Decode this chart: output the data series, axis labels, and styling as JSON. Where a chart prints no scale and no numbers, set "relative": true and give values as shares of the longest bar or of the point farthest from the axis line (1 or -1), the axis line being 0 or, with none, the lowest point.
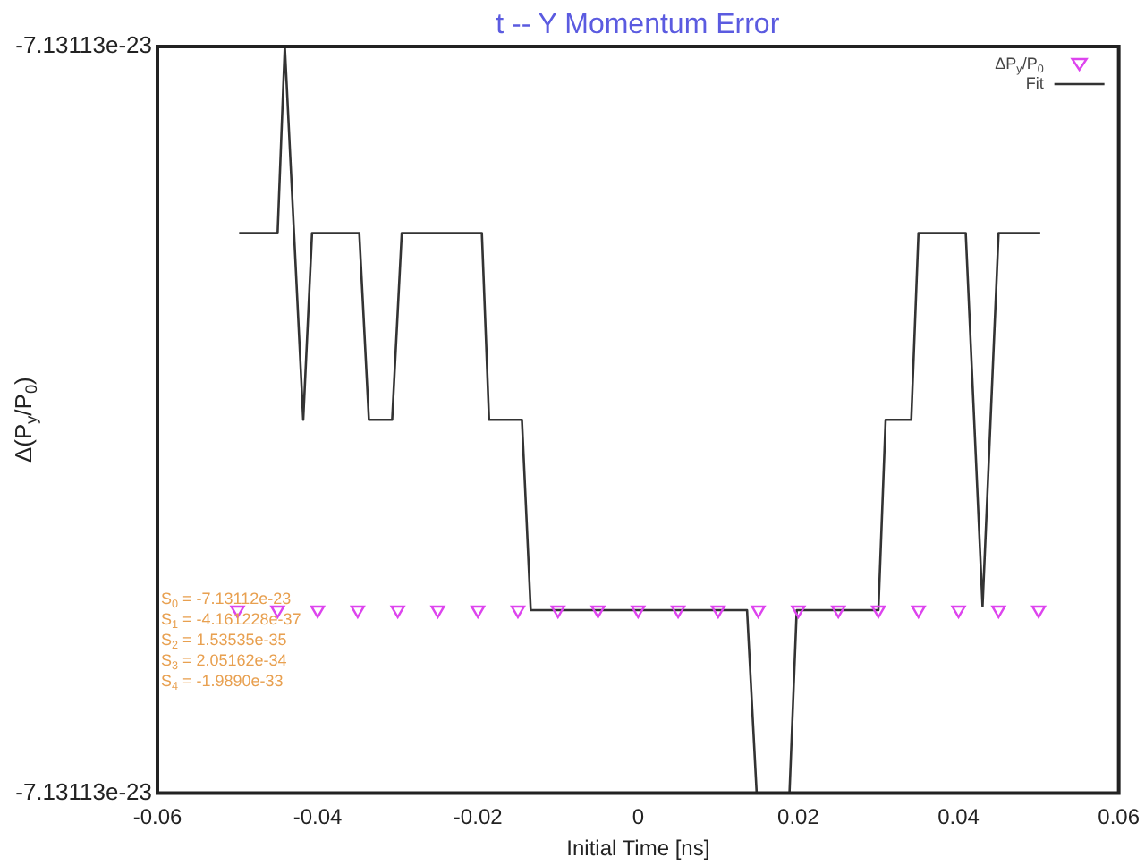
{
  "chart_data": {
    "type": "scatter",
    "title": "t -- Y Momentum Error",
    "xlabel": "Initial Time [ns]",
    "ylabel": "Δ(P$_{y}$/P$_{0}$)",
    "relative": true,
    "legend": "top right",
    "xlim": [
      -0.06,
      0.06
    ],
    "xticks": [
      -0.06,
      -0.04,
      -0.02,
      0,
      0.02,
      0.04,
      0.06
    ],
    "annotations": [
      "-7.13113e-23",
      "-7.13113e-23",
      "S$_{0}$ = -7.13112e-23",
      "S$_{1}$ = -4.161228e-37",
      "S$_{2}$ = 1.53535e-35",
      "S$_{3}$ = 2.05162e-34",
      "S$_{4}$ = -1.9890e-33"
    ],
    "series": [
      {
        "name": "ΔP$_{y}$/P$_{0}$",
        "type": "scatter",
        "marker": "triangle",
        "color": "#dd44ee",
        "x": [
          -0.05,
          -0.045,
          -0.04,
          -0.035,
          -0.03,
          -0.025,
          -0.02,
          -0.015,
          -0.01,
          -0.005,
          0,
          0.005,
          0.01,
          0.015,
          0.02,
          0.025,
          0.03,
          0.035,
          0.04,
          0.045,
          0.05
        ],
        "values": [
          0.245,
          0.245,
          0.245,
          0.245,
          0.245,
          0.245,
          0.245,
          0.245,
          0.245,
          0.245,
          0.245,
          0.245,
          0.245,
          0.245,
          0.245,
          0.245,
          0.245,
          0.245,
          0.245,
          0.245,
          0.245
        ]
      },
      {
        "name": "Fit",
        "type": "line",
        "marker": "none",
        "color": "#333333",
        "x": [
          -0.0498,
          -0.045,
          -0.0441,
          -0.0418,
          -0.0407,
          -0.0348,
          -0.0336,
          -0.0307,
          -0.0295,
          -0.0195,
          -0.0186,
          -0.0145,
          -0.0134,
          0.0136,
          0.0148,
          0.0189,
          0.0198,
          0.03,
          0.0309,
          0.0341,
          0.035,
          0.0409,
          0.043,
          0.045,
          0.0502
        ],
        "values": [
          0.75,
          0.75,
          1,
          0.5,
          0.75,
          0.75,
          0.5,
          0.5,
          0.75,
          0.75,
          0.5,
          0.5,
          0.245,
          0.245,
          0,
          0,
          0.245,
          0.245,
          0.5,
          0.5,
          0.75,
          0.75,
          0.25,
          0.75,
          0.75
        ]
      }
    ]
  }
}
